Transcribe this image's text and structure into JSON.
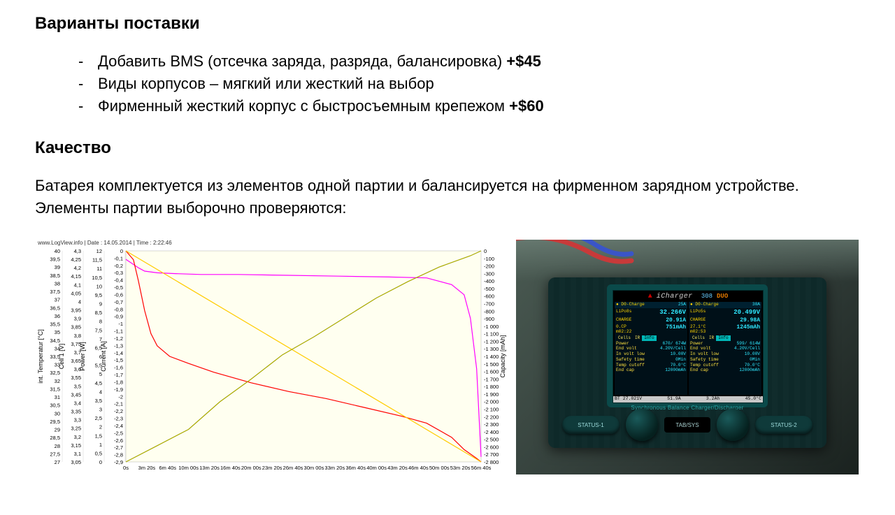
{
  "headings": {
    "supply": "Варианты поставки",
    "quality": "Качество"
  },
  "supply_items": [
    {
      "text": "Добавить BMS (отсечка заряда, разряда, балансировка) ",
      "bold": "+$45"
    },
    {
      "text": "Виды корпусов – мягкий или жесткий на выбор",
      "bold": ""
    },
    {
      "text": "Фирменный жесткий корпус с быстросъемным крепежом ",
      "bold": "+$60"
    }
  ],
  "quality_paragraph": "Батарея комплектуется из элементов одной партии и балансируется на фирменном зарядном устройстве. Элементы партии выборочно проверяются:",
  "chart": {
    "type": "line",
    "header": "www.LogView.info   |   Date : 14.05.2014   |   Time : 2:22:46",
    "background_color": "#fffff0",
    "frame_color": "#444444",
    "x_axis": {
      "labels": [
        "0s",
        "3m 20s",
        "6m 40s",
        "10m 00s",
        "13m 20s",
        "16m 40s",
        "20m 00s",
        "23m 20s",
        "26m 40s",
        "30m 00s",
        "33m 20s",
        "36m 40s",
        "40m 00s",
        "43m 20s",
        "46m 40s",
        "50m 00s",
        "53m 20s",
        "56m 40s"
      ],
      "label_fontsize": 7.5
    },
    "y_columns": [
      {
        "label": "int. Temperatur [°C]",
        "color": "#000000",
        "ticks": [
          "40",
          "39,5",
          "39",
          "38,5",
          "38",
          "37,5",
          "37",
          "36,5",
          "36",
          "35,5",
          "35",
          "34,5",
          "34",
          "33,5",
          "33",
          "32,5",
          "32",
          "31,5",
          "31",
          "30,5",
          "30",
          "29,5",
          "29",
          "28,5",
          "28",
          "27,5",
          "27"
        ]
      },
      {
        "label": "Cell 1 [V]",
        "color": "#000000",
        "ticks": [
          "4,3",
          "4,25",
          "4,2",
          "4,15",
          "4,1",
          "4,05",
          "4",
          "3,95",
          "3,9",
          "3,85",
          "3,8",
          "3,75",
          "3,7",
          "3,65",
          "3,6",
          "3,55",
          "3,5",
          "3,45",
          "3,4",
          "3,35",
          "3,3",
          "3,25",
          "3,2",
          "3,15",
          "3,1",
          "3,05"
        ]
      },
      {
        "label": "Power [W]",
        "color": "#000000",
        "ticks": [
          "12",
          "11,5",
          "11",
          "10,5",
          "10",
          "9,5",
          "9",
          "8,5",
          "8",
          "7,5",
          "7",
          "6,5",
          "6",
          "5,5",
          "5",
          "4,5",
          "4",
          "3,5",
          "3",
          "2,5",
          "2",
          "1,5",
          "1",
          "0,5",
          "0"
        ]
      },
      {
        "label": "Current [A]",
        "color": "#000000",
        "ticks": [
          "0",
          "-0,1",
          "-0,2",
          "-0,3",
          "-0,4",
          "-0,5",
          "-0,6",
          "-0,7",
          "-0,8",
          "-0,9",
          "-1",
          "-1,1",
          "-1,2",
          "-1,3",
          "-1,4",
          "-1,5",
          "-1,6",
          "-1,7",
          "-1,8",
          "-1,9",
          "-2",
          "-2,1",
          "-2,2",
          "-2,3",
          "-2,4",
          "-2,5",
          "-2,6",
          "-2,7",
          "-2,8",
          "-2,9"
        ]
      }
    ],
    "y_right": {
      "label": "Capacity [mAh]",
      "color": "#000000",
      "ticks": [
        "0",
        "-100",
        "-200",
        "-300",
        "-400",
        "-500",
        "-600",
        "-700",
        "-800",
        "-900",
        "-1 000",
        "-1 100",
        "-1 200",
        "-1 300",
        "-1 400",
        "-1 500",
        "-1 600",
        "-1 700",
        "-1 800",
        "-1 900",
        "-2 000",
        "-2 100",
        "-2 200",
        "-2 300",
        "-2 400",
        "-2 500",
        "-2 600",
        "-2 700",
        "-2 800"
      ]
    },
    "traces": [
      {
        "name": "cell-voltage",
        "color": "#ff00ff",
        "width": 1.2,
        "points": [
          [
            0,
            4.25
          ],
          [
            2,
            4.2
          ],
          [
            3,
            4.18
          ],
          [
            5,
            4.17
          ],
          [
            8,
            4.165
          ],
          [
            12,
            4.16
          ],
          [
            18,
            4.16
          ],
          [
            26,
            4.155
          ],
          [
            34,
            4.15
          ],
          [
            42,
            4.145
          ],
          [
            48,
            4.14
          ],
          [
            52,
            4.1
          ],
          [
            54,
            4.04
          ],
          [
            55,
            3.9
          ],
          [
            56,
            3.6
          ],
          [
            56.7,
            3.08
          ]
        ],
        "y_span": [
          3.05,
          4.3
        ]
      },
      {
        "name": "power",
        "color": "#ff0000",
        "width": 1.2,
        "points": [
          [
            0,
            12.0
          ],
          [
            1.2,
            11.5
          ],
          [
            2,
            10.3
          ],
          [
            3,
            8.6
          ],
          [
            4,
            7.3
          ],
          [
            5,
            6.6
          ],
          [
            7,
            6.0
          ],
          [
            10,
            5.6
          ],
          [
            14,
            5.1
          ],
          [
            20,
            4.5
          ],
          [
            26,
            4.0
          ],
          [
            32,
            3.6
          ],
          [
            38,
            3.1
          ],
          [
            44,
            2.6
          ],
          [
            48,
            2.2
          ],
          [
            52,
            1.4
          ],
          [
            54,
            0.7
          ],
          [
            56,
            0.2
          ],
          [
            56.7,
            0.0
          ]
        ],
        "y_span": [
          0,
          12
        ]
      },
      {
        "name": "capacity",
        "color": "#ffcc00",
        "width": 1.2,
        "points": [
          [
            0,
            0
          ],
          [
            56.7,
            -2800
          ]
        ],
        "y_span": [
          -2800,
          0
        ]
      },
      {
        "name": "int-temperature",
        "color": "#a8a800",
        "width": 1.2,
        "points": [
          [
            0,
            27.0
          ],
          [
            5,
            28.0
          ],
          [
            10,
            29.0
          ],
          [
            15,
            30.7
          ],
          [
            20,
            32.1
          ],
          [
            25,
            33.6
          ],
          [
            30,
            34.7
          ],
          [
            35,
            35.9
          ],
          [
            40,
            37.1
          ],
          [
            45,
            38.1
          ],
          [
            50,
            39.0
          ],
          [
            55,
            39.7
          ],
          [
            56.7,
            40.0
          ]
        ],
        "y_span": [
          27,
          40
        ]
      }
    ],
    "x_span_minutes": [
      0,
      56.7
    ]
  },
  "charger": {
    "brand": "iCharger",
    "model": "308",
    "model_suffix": "DUO",
    "subtitle": "Synchronous Balance Charger/Discharger",
    "footer": [
      "BT 27.021V",
      "51.9A",
      "3.2Ah",
      "45.0°C"
    ],
    "buttons": {
      "status1": "STATUS-1",
      "tabsys": "TAB/SYS",
      "status2": "STATUS-2"
    },
    "panels": [
      {
        "header_name": "D0-Charge",
        "header_amp": "25A",
        "chem": "LiPo8s",
        "volts": "32.266V",
        "mode": "CHARGE",
        "amps": "20.91A",
        "sub_left": "0.CP",
        "mah": "751mAh",
        "time": "m02:22",
        "tabs": [
          "Cells",
          "IR",
          "Info"
        ],
        "active_tab": 2,
        "rows": [
          [
            "Power",
            "670/  674W"
          ],
          [
            "End volt",
            "4.20V/Cell"
          ],
          [
            "In volt low",
            "10.00V"
          ],
          [
            "Safety time",
            "0Min"
          ],
          [
            "Temp cutoff",
            "70.0°C"
          ],
          [
            "End cap",
            "12000mAh"
          ]
        ]
      },
      {
        "header_name": "D0-Charge",
        "header_amp": "30A",
        "chem": "LiPo5s",
        "volts": "20.499V",
        "mode": "CHARGE",
        "amps": "29.98A",
        "sub_left": "27.1°C",
        "mah": "1245mAh",
        "time": "m02:53",
        "tabs": [
          "Cells",
          "IR",
          "Info"
        ],
        "active_tab": 2,
        "rows": [
          [
            "Power",
            "599/  614W"
          ],
          [
            "End volt",
            "4.20V/Cell"
          ],
          [
            "In volt low",
            "10.00V"
          ],
          [
            "Safety time",
            "0Min"
          ],
          [
            "Temp cutoff",
            "70.0°C"
          ],
          [
            "End cap",
            "12000mAh"
          ]
        ]
      }
    ]
  }
}
